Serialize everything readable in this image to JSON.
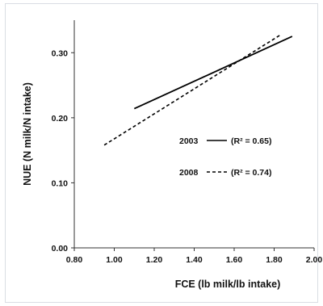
{
  "chart_data": {
    "type": "line",
    "xlabel": "FCE  (lb milk/lb intake)",
    "ylabel": "NUE (N milk/N intake)",
    "xlim": [
      0.8,
      2.0
    ],
    "ylim": [
      0.0,
      0.35
    ],
    "x_ticks": [
      "0.80",
      "1.00",
      "1.20",
      "1.40",
      "1.60",
      "1.80",
      "2.00"
    ],
    "y_ticks": [
      "0.00",
      "0.10",
      "0.20",
      "0.30"
    ],
    "grid": false,
    "legend_position": "center-right",
    "series": [
      {
        "name": "2003",
        "r2_label": "(R² = 0.65)",
        "style": "solid",
        "color": "#000000",
        "x": [
          1.1,
          1.89
        ],
        "y": [
          0.214,
          0.325
        ]
      },
      {
        "name": "2008",
        "r2_label": "(R² = 0.74)",
        "style": "dashed",
        "color": "#000000",
        "x": [
          0.95,
          1.83
        ],
        "y": [
          0.158,
          0.327
        ]
      }
    ]
  }
}
